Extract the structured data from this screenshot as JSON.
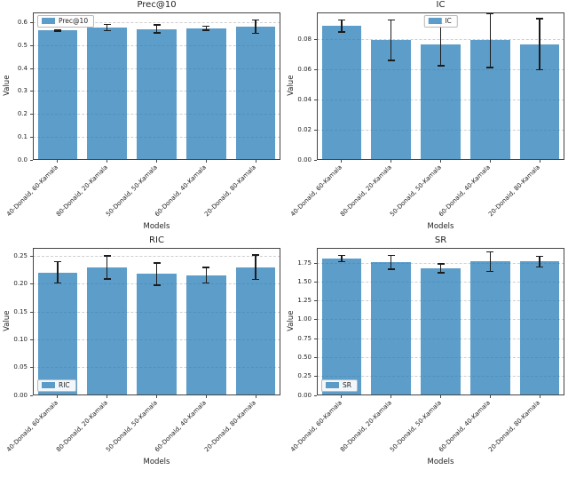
{
  "colors": {
    "bar_color": "#1f77b4",
    "bar_opacity": "0.72",
    "error_color": "#1c1c1c",
    "grid_color": "#cfcfcf",
    "spine_color": "#444444",
    "text_color": "#1f1f1f",
    "legend_border": "#b9b9b9"
  },
  "chart_data": [
    {
      "type": "bar",
      "title": "Prec@10",
      "xlabel": "Models",
      "ylabel": "Value",
      "legend": {
        "label": "Prec@10",
        "position": "upper-left"
      },
      "categories": [
        "40-Donald, 60-Kamala",
        "80-Donald, 20-Kamala",
        "50-Donald, 50-Kamala",
        "60-Donald, 40-Kamala",
        "20-Donald, 80-Kamala"
      ],
      "values": [
        0.567,
        0.579,
        0.573,
        0.576,
        0.583
      ],
      "errors": [
        0.003,
        0.013,
        0.017,
        0.009,
        0.029
      ],
      "ylim": [
        0,
        0.645
      ],
      "yticks": [
        0,
        0.1,
        0.2,
        0.3,
        0.4,
        0.5,
        0.6
      ],
      "ytick_labels": [
        "0.0",
        "0.1",
        "0.2",
        "0.3",
        "0.4",
        "0.5",
        "0.6"
      ],
      "grid": true
    },
    {
      "type": "bar",
      "title": "IC",
      "xlabel": "Models",
      "ylabel": "Value",
      "legend": {
        "label": "IC",
        "position": "upper-center"
      },
      "categories": [
        "40-Donald, 60-Kamala",
        "80-Donald, 20-Kamala",
        "50-Donald, 50-Kamala",
        "60-Donald, 40-Kamala",
        "20-Donald, 80-Kamala"
      ],
      "values": [
        0.089,
        0.0795,
        0.0765,
        0.0795,
        0.077
      ],
      "errors": [
        0.004,
        0.0135,
        0.014,
        0.018,
        0.017
      ],
      "ylim": [
        0,
        0.098
      ],
      "yticks": [
        0,
        0.02,
        0.04,
        0.06,
        0.08
      ],
      "ytick_labels": [
        "0.00",
        "0.02",
        "0.04",
        "0.06",
        "0.08"
      ],
      "grid": true
    },
    {
      "type": "bar",
      "title": "RIC",
      "xlabel": "Models",
      "ylabel": "Value",
      "legend": {
        "label": "RIC",
        "position": "lower-left"
      },
      "categories": [
        "40-Donald, 60-Kamala",
        "80-Donald, 20-Kamala",
        "50-Donald, 50-Kamala",
        "60-Donald, 40-Kamala",
        "20-Donald, 80-Kamala"
      ],
      "values": [
        0.221,
        0.23,
        0.218,
        0.216,
        0.23
      ],
      "errors": [
        0.019,
        0.021,
        0.02,
        0.014,
        0.022
      ],
      "ylim": [
        0,
        0.265
      ],
      "yticks": [
        0,
        0.05,
        0.1,
        0.15,
        0.2,
        0.25
      ],
      "ytick_labels": [
        "0.00",
        "0.05",
        "0.10",
        "0.15",
        "0.20",
        "0.25"
      ],
      "grid": true
    },
    {
      "type": "bar",
      "title": "SR",
      "xlabel": "Models",
      "ylabel": "Value",
      "legend": {
        "label": "SR",
        "position": "lower-left"
      },
      "categories": [
        "40-Donald, 60-Kamala",
        "80-Donald, 20-Kamala",
        "50-Donald, 50-Kamala",
        "60-Donald, 40-Kamala",
        "20-Donald, 80-Kamala"
      ],
      "values": [
        1.81,
        1.76,
        1.68,
        1.77,
        1.77
      ],
      "errors": [
        0.04,
        0.09,
        0.06,
        0.13,
        0.07
      ],
      "ylim": [
        0,
        1.95
      ],
      "yticks": [
        0,
        0.25,
        0.5,
        0.75,
        1.0,
        1.25,
        1.5,
        1.75
      ],
      "ytick_labels": [
        "0.00",
        "0.25",
        "0.50",
        "0.75",
        "1.00",
        "1.25",
        "1.50",
        "1.75"
      ],
      "grid": true
    }
  ]
}
